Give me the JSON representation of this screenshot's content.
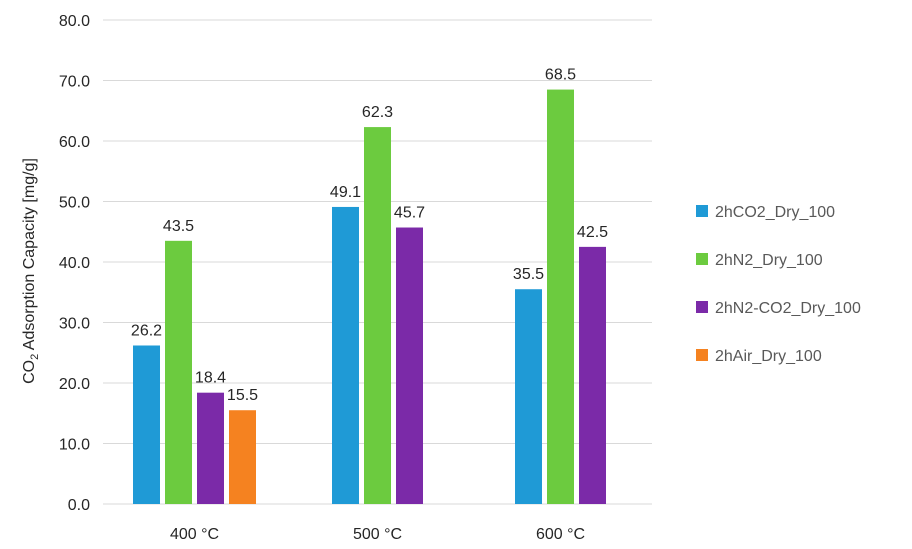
{
  "chart_data": {
    "type": "bar",
    "title": "",
    "xlabel": "",
    "ylabel": {
      "prefix": "CO",
      "subscript": "2",
      "suffix": " Adsorption Capacity [mg/g]"
    },
    "ylim": [
      0,
      80
    ],
    "yticks": [
      "0.0",
      "10.0",
      "20.0",
      "30.0",
      "40.0",
      "50.0",
      "60.0",
      "70.0",
      "80.0"
    ],
    "grid": true,
    "legend_position": "right",
    "categories": [
      "400 °C",
      "500 °C",
      "600 °C"
    ],
    "series": [
      {
        "name": "2hCO2_Dry_100",
        "color": "#1F9AD6",
        "values": [
          26.2,
          49.1,
          35.5
        ],
        "labels": [
          "26.2",
          "49.1",
          "35.5"
        ]
      },
      {
        "name": "2hN2_Dry_100",
        "color": "#6CCB3F",
        "values": [
          43.5,
          62.3,
          68.5
        ],
        "labels": [
          "43.5",
          "62.3",
          "68.5"
        ]
      },
      {
        "name": "2hN2-CO2_Dry_100",
        "color": "#7B2AA8",
        "values": [
          18.4,
          45.7,
          42.5
        ],
        "labels": [
          "18.4",
          "45.7",
          "42.5"
        ]
      },
      {
        "name": "2hAir_Dry_100",
        "color": "#F58220",
        "values": [
          15.5,
          null,
          null
        ],
        "labels": [
          "15.5",
          "",
          ""
        ]
      }
    ]
  }
}
